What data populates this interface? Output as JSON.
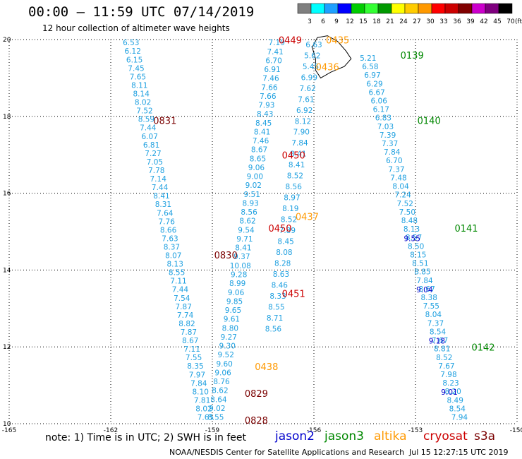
{
  "header": {
    "title": "00:00 – 11:59 UTC 07/14/2019",
    "subtitle": "12 hour collection of altimeter wave heights"
  },
  "colorbar": {
    "labels": [
      "3",
      "6",
      "9",
      "12",
      "15",
      "18",
      "21",
      "24",
      "27",
      "30",
      "33",
      "36",
      "39",
      "42",
      "45",
      "70"
    ],
    "unit": "(ft)",
    "colors": [
      "#7f7f7f",
      "#00ffff",
      "#1fa0ff",
      "#0000ff",
      "#00cc00",
      "#33ff33",
      "#009900",
      "#ffff00",
      "#ffcc00",
      "#ff9900",
      "#ff0000",
      "#cc0000",
      "#800000",
      "#cc00cc",
      "#7f007f",
      "#000000"
    ]
  },
  "map": {
    "lon_ticks": [
      "-165",
      "-162",
      "-159",
      "-156",
      "-153",
      "-150"
    ],
    "lat_ticks": [
      "20",
      "18",
      "16",
      "14",
      "12",
      "10"
    ],
    "colors": {
      "jason2": "#0000cc",
      "jason3": "#008800",
      "altika": "#ff9900",
      "cryosat": "#cc0000",
      "s3a": "#7a0000",
      "swh": "#1fa0e0",
      "island": "#000000"
    }
  },
  "passes": [
    {
      "label": "0449",
      "sat": "cryosat",
      "lon": -156.7,
      "lat": 19.9
    },
    {
      "label": "0435",
      "sat": "altika",
      "lon": -155.3,
      "lat": 19.9
    },
    {
      "label": "0436",
      "sat": "altika",
      "lon": -155.6,
      "lat": 19.2
    },
    {
      "label": "0139",
      "sat": "jason3",
      "lon": -153.1,
      "lat": 19.5
    },
    {
      "label": "0140",
      "sat": "jason3",
      "lon": -152.6,
      "lat": 17.8
    },
    {
      "label": "0831",
      "sat": "s3a",
      "lon": -160.4,
      "lat": 17.8
    },
    {
      "label": "0450",
      "sat": "cryosat",
      "lon": -156.6,
      "lat": 16.9
    },
    {
      "label": "0437",
      "sat": "altika",
      "lon": -156.2,
      "lat": 15.3
    },
    {
      "label": "0450",
      "sat": "cryosat",
      "lon": -157.0,
      "lat": 15.0
    },
    {
      "label": "0141",
      "sat": "jason3",
      "lon": -151.5,
      "lat": 15.0
    },
    {
      "label": "0830",
      "sat": "s3a",
      "lon": -158.6,
      "lat": 14.3
    },
    {
      "label": "0451",
      "sat": "cryosat",
      "lon": -156.6,
      "lat": 13.3
    },
    {
      "label": "0142",
      "sat": "jason3",
      "lon": -151.0,
      "lat": 11.9
    },
    {
      "label": "0438",
      "sat": "altika",
      "lon": -157.4,
      "lat": 11.4
    },
    {
      "label": "0829",
      "sat": "s3a",
      "lon": -157.7,
      "lat": 10.7
    },
    {
      "label": "0828",
      "sat": "s3a",
      "lon": -157.7,
      "lat": 10.0
    }
  ],
  "tracks": [
    {
      "sat": "swh",
      "lon0": -161.4,
      "lat0": 19.85,
      "lon1": -159.2,
      "lat1": 10.1,
      "values": [
        "6.53",
        "6.12",
        "6.15",
        "7.45",
        "7.65",
        "8.11",
        "8.14",
        "8.02",
        "7.52",
        "8.59",
        "7.44",
        "6.07",
        "6.81",
        "7.27",
        "7.05",
        "7.78",
        "7.14",
        "7.44",
        "8.41",
        "8.31",
        "7.64",
        "7.76",
        "8.66",
        "7.63",
        "8.37",
        "8.07",
        "8.13",
        "8.55",
        "7.11",
        "7.44",
        "7.54",
        "7.87",
        "7.74",
        "8.82",
        "7.87",
        "8.67",
        "7.11",
        "7.55",
        "8.35",
        "7.97",
        "7.84",
        "8.10",
        "7.81",
        "8.02",
        "7.65"
      ]
    },
    {
      "sat": "swh",
      "lon0": -157.1,
      "lat0": 19.85,
      "lon1": -158.9,
      "lat1": 10.1,
      "values": [
        "7.19",
        "7.41",
        "6.70",
        "6.91",
        "7.46",
        "7.66",
        "7.66",
        "7.93",
        "8.43",
        "8.45",
        "8.41",
        "7.46",
        "8.67",
        "8.65",
        "9.06",
        "9.00",
        "9.02",
        "9.51",
        "8.93",
        "8.56",
        "8.62",
        "9.54",
        "9.71",
        "8.41",
        "9.37",
        "10.08",
        "9.28",
        "8.99",
        "9.06",
        "9.85",
        "9.65",
        "9.61",
        "8.80",
        "9.27",
        "9.30",
        "9.52",
        "9.60",
        "9.06",
        "8.76",
        "8.62",
        "8.64",
        "9.02",
        "8.55"
      ]
    },
    {
      "sat": "swh",
      "lon0": -156.0,
      "lat0": 19.8,
      "lon1": -157.2,
      "lat1": 12.4,
      "values": [
        "6.63",
        "5.62",
        "5.45",
        "6.99",
        "7.62",
        "7.61",
        "6.92",
        "8.12",
        "7.90",
        "7.84",
        "8.41",
        "8.41",
        "8.52",
        "8.56",
        "8.97",
        "8.19",
        "8.52",
        "7.89",
        "8.45",
        "8.08",
        "8.28",
        "8.63",
        "8.46",
        "8.33",
        "8.55",
        "8.71",
        "8.56"
      ]
    },
    {
      "sat": "swh",
      "lon0": -154.4,
      "lat0": 19.45,
      "lon1": -151.7,
      "lat1": 10.1,
      "values": [
        "5.21",
        "6.58",
        "6.97",
        "6.29",
        "6.67",
        "6.06",
        "6.17",
        "6.83",
        "7.03",
        "7.39",
        "7.37",
        "7.84",
        "6.70",
        "7.37",
        "7.48",
        "8.04",
        "7.24",
        "7.52",
        "7.50",
        "8.48",
        "8.13",
        "8.57",
        "8.50",
        "8.15",
        "8.51",
        "8.85",
        "7.84",
        "8.67",
        "8.38",
        "7.55",
        "8.04",
        "7.37",
        "8.54",
        "7.67",
        "8.81",
        "8.52",
        "7.67",
        "7.98",
        "8.23",
        "8.20",
        "8.49",
        "8.54",
        "7.94"
      ]
    },
    {
      "sat": "jason2",
      "lon0": -153.1,
      "lat0": 14.75,
      "lon1": -152.0,
      "lat1": 10.75,
      "values": [
        "9.55",
        "9.04",
        "9.18",
        "9.01"
      ]
    }
  ],
  "footer": {
    "note": "note: 1) Time is in UTC; 2) SWH is in feet",
    "sats": [
      "jason2",
      "jason3",
      "altika",
      "cryosat",
      "s3a"
    ],
    "credit": "NOAA/NESDIS Center for Satellite Applications and Research",
    "timestamp": "Jul 15 12:27:15 UTC 2019"
  }
}
